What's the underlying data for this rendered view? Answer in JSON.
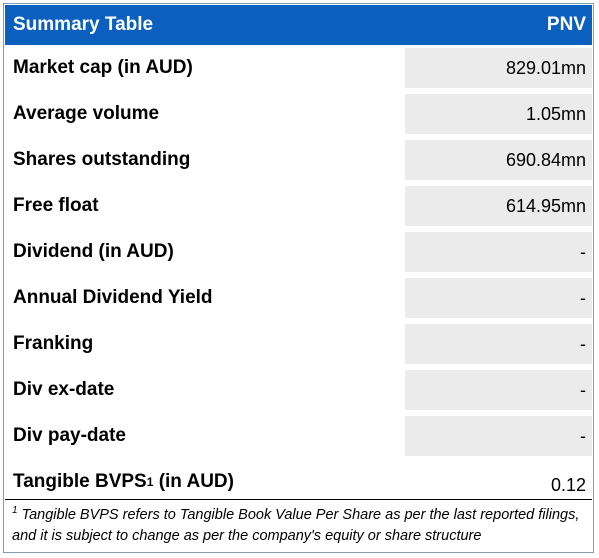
{
  "header": {
    "title": "Summary Table",
    "ticker": "PNV"
  },
  "rows": [
    {
      "label": "Market cap (in AUD)",
      "value": "829.01mn"
    },
    {
      "label": "Average volume",
      "value": "1.05mn"
    },
    {
      "label": "Shares outstanding",
      "value": "690.84mn"
    },
    {
      "label": "Free float",
      "value": "614.95mn"
    },
    {
      "label": "Dividend (in AUD)",
      "value": "-"
    },
    {
      "label": "Annual Dividend Yield",
      "value": "-"
    },
    {
      "label": "Franking",
      "value": "-"
    },
    {
      "label": "Div ex-date",
      "value": "-"
    },
    {
      "label": "Div pay-date",
      "value": "-"
    },
    {
      "label_main": "Tangible BVPS",
      "label_sup": "1",
      "label_suffix": " (in AUD)",
      "value": "0.12"
    }
  ],
  "footnote": {
    "marker": "1",
    "text": " Tangible BVPS refers to Tangible Book Value Per Share as per the last reported filings, and it is subject to change as per the company's equity or share structure"
  },
  "colors": {
    "header_bg": "#0b5fbf",
    "header_text": "#ffffff",
    "value_cell_bg": "#ebebeb"
  }
}
